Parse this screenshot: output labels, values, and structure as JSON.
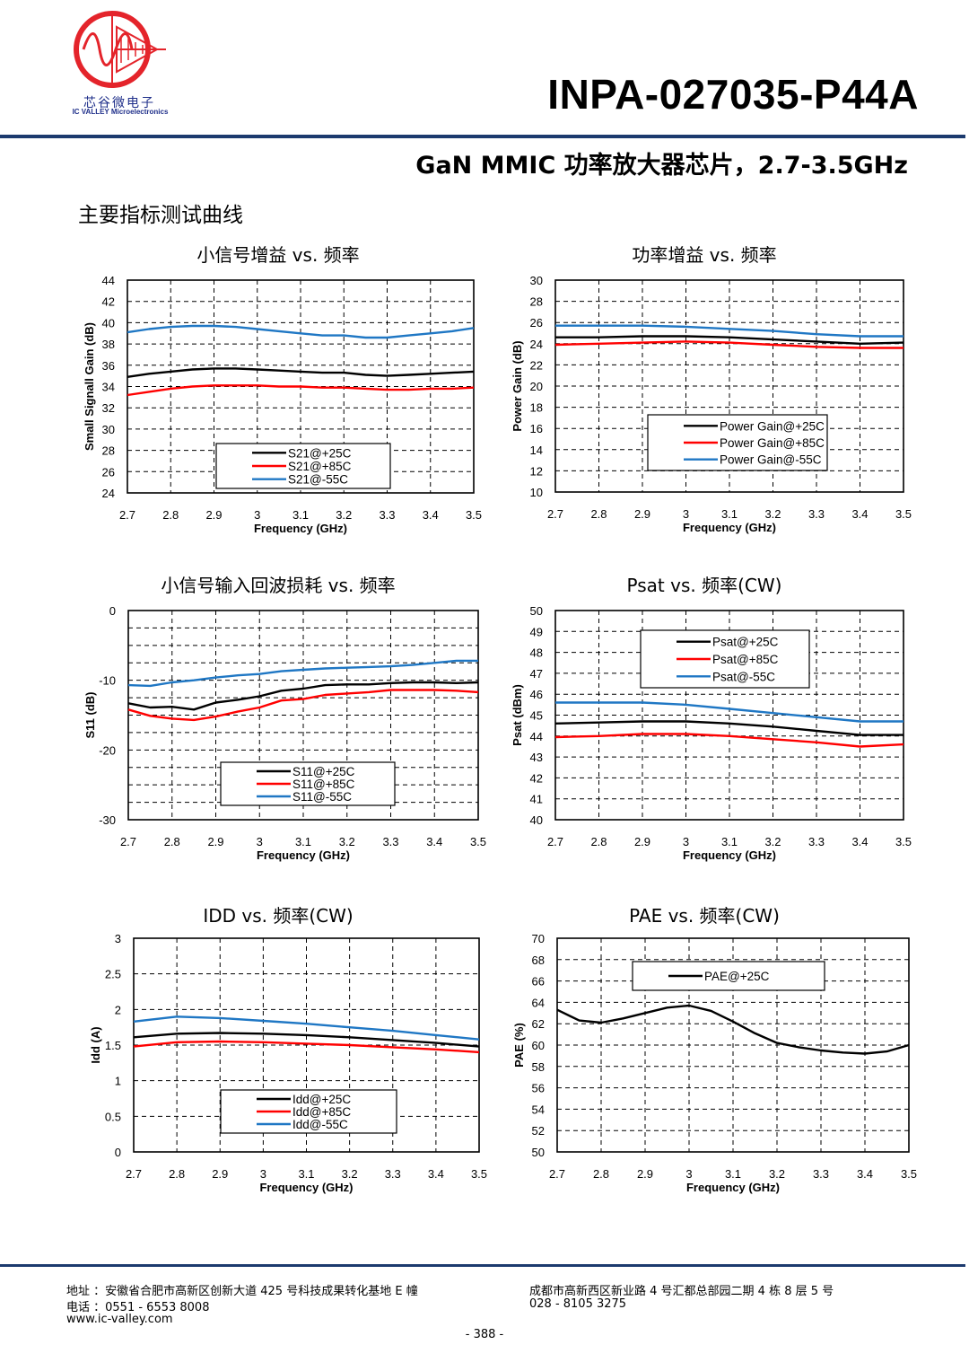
{
  "header": {
    "logo_cn": "芯谷微电子",
    "logo_en": "IC VALLEY Microelectronics",
    "part_number": "INPA-027035-P44A",
    "subtitle": "GaN MMIC 功率放大器芯片，2.7-3.5GHz",
    "section_title": "主要指标测试曲线"
  },
  "colors": {
    "rule": "#1c3a6e",
    "logo_red": "#e4242b",
    "logo_blue": "#1f2f8a",
    "s25": "#000000",
    "s85": "#ff0000",
    "sm55": "#1f77c4"
  },
  "chart_data": [
    {
      "type": "line",
      "title": "小信号增益 vs. 频率",
      "xlabel": "Frequency (GHz)",
      "ylabel": "Small Signall Gain (dB)",
      "xlim": [
        2.7,
        3.5
      ],
      "ylim": [
        24,
        44
      ],
      "x_ticks": [
        "2.7",
        "2.8",
        "2.9",
        "3",
        "3.1",
        "3.2",
        "3.3",
        "3.4",
        "3.5"
      ],
      "y_ticks": [
        "24",
        "26",
        "28",
        "30",
        "32",
        "34",
        "36",
        "38",
        "40",
        "42",
        "44"
      ],
      "legend": "bottom-center",
      "series": [
        {
          "name": "S21@+25C",
          "color": "#000000",
          "x": [
            2.7,
            2.75,
            2.8,
            2.85,
            2.9,
            2.95,
            3.0,
            3.05,
            3.1,
            3.15,
            3.2,
            3.25,
            3.3,
            3.35,
            3.4,
            3.45,
            3.5
          ],
          "y": [
            34.9,
            35.2,
            35.4,
            35.6,
            35.7,
            35.7,
            35.6,
            35.5,
            35.4,
            35.3,
            35.3,
            35.1,
            35.0,
            35.1,
            35.2,
            35.3,
            35.4
          ]
        },
        {
          "name": "S21@+85C",
          "color": "#ff0000",
          "x": [
            2.7,
            2.75,
            2.8,
            2.85,
            2.9,
            2.95,
            3.0,
            3.05,
            3.1,
            3.15,
            3.2,
            3.25,
            3.3,
            3.35,
            3.4,
            3.45,
            3.5
          ],
          "y": [
            33.2,
            33.5,
            33.8,
            34.0,
            34.1,
            34.1,
            34.1,
            34.0,
            34.0,
            33.9,
            33.9,
            33.8,
            33.7,
            33.7,
            33.8,
            33.8,
            33.9
          ]
        },
        {
          "name": "S21@-55C",
          "color": "#1f77c4",
          "x": [
            2.7,
            2.75,
            2.8,
            2.85,
            2.9,
            2.95,
            3.0,
            3.05,
            3.1,
            3.15,
            3.2,
            3.25,
            3.3,
            3.35,
            3.4,
            3.45,
            3.5
          ],
          "y": [
            39.1,
            39.4,
            39.6,
            39.7,
            39.7,
            39.6,
            39.4,
            39.2,
            39.0,
            38.8,
            38.8,
            38.6,
            38.6,
            38.8,
            39.0,
            39.2,
            39.5
          ]
        }
      ]
    },
    {
      "type": "line",
      "title": "功率增益 vs. 频率",
      "xlabel": "Frequency (GHz)",
      "ylabel": "Power Gain (dB)",
      "xlim": [
        2.7,
        3.5
      ],
      "ylim": [
        10,
        30
      ],
      "x_ticks": [
        "2.7",
        "2.8",
        "2.9",
        "3",
        "3.1",
        "3.2",
        "3.3",
        "3.4",
        "3.5"
      ],
      "y_ticks": [
        "10",
        "12",
        "14",
        "16",
        "18",
        "20",
        "22",
        "24",
        "26",
        "28",
        "30"
      ],
      "legend": "bottom-right",
      "series": [
        {
          "name": "Power Gain@+25C",
          "color": "#000000",
          "x": [
            2.7,
            2.8,
            2.9,
            3.0,
            3.1,
            3.2,
            3.3,
            3.4,
            3.5
          ],
          "y": [
            24.6,
            24.6,
            24.7,
            24.7,
            24.6,
            24.4,
            24.2,
            24.0,
            24.1
          ]
        },
        {
          "name": "Power Gain@+85C",
          "color": "#ff0000",
          "x": [
            2.7,
            2.8,
            2.9,
            3.0,
            3.1,
            3.2,
            3.3,
            3.4,
            3.5
          ],
          "y": [
            23.9,
            24.0,
            24.1,
            24.2,
            24.1,
            23.9,
            23.7,
            23.6,
            23.6
          ]
        },
        {
          "name": "Power Gain@-55C",
          "color": "#1f77c4",
          "x": [
            2.7,
            2.8,
            2.9,
            3.0,
            3.1,
            3.2,
            3.3,
            3.4,
            3.5
          ],
          "y": [
            25.7,
            25.7,
            25.7,
            25.6,
            25.4,
            25.2,
            24.9,
            24.7,
            24.7
          ]
        }
      ]
    },
    {
      "type": "line",
      "title": "小信号输入回波损耗 vs. 频率",
      "xlabel": "Frequency (GHz)",
      "ylabel": "S11 (dB)",
      "xlim": [
        2.7,
        3.5
      ],
      "ylim": [
        -30,
        0
      ],
      "x_ticks": [
        "2.7",
        "2.8",
        "2.9",
        "3",
        "3.1",
        "3.2",
        "3.3",
        "3.4",
        "3.5"
      ],
      "y_ticks": [
        "-30",
        "-20",
        "-10",
        "0"
      ],
      "y_tick_values": [
        -30,
        -20,
        -10,
        0
      ],
      "y_grid_values": [
        -27.5,
        -25,
        -22.5,
        -20,
        -17.5,
        -15,
        -12.5,
        -10,
        -7.5,
        -5,
        -2.5
      ],
      "legend": "bottom-center",
      "series": [
        {
          "name": "S11@+25C",
          "color": "#000000",
          "x": [
            2.7,
            2.75,
            2.8,
            2.85,
            2.9,
            2.95,
            3.0,
            3.05,
            3.1,
            3.15,
            3.2,
            3.25,
            3.3,
            3.35,
            3.4,
            3.45,
            3.5
          ],
          "y": [
            -13.3,
            -13.9,
            -13.8,
            -14.2,
            -13.2,
            -12.8,
            -12.3,
            -11.5,
            -11.2,
            -10.7,
            -10.6,
            -10.6,
            -10.4,
            -10.3,
            -10.3,
            -10.4,
            -10.3
          ]
        },
        {
          "name": "S11@+85C",
          "color": "#ff0000",
          "x": [
            2.7,
            2.75,
            2.8,
            2.85,
            2.9,
            2.95,
            3.0,
            3.05,
            3.1,
            3.15,
            3.2,
            3.25,
            3.3,
            3.35,
            3.4,
            3.45,
            3.5
          ],
          "y": [
            -14.2,
            -15.1,
            -15.5,
            -15.7,
            -15.2,
            -14.5,
            -13.9,
            -12.9,
            -12.7,
            -12.1,
            -11.9,
            -11.7,
            -11.4,
            -11.4,
            -11.4,
            -11.5,
            -11.7
          ]
        },
        {
          "name": "S11@-55C",
          "color": "#1f77c4",
          "x": [
            2.7,
            2.75,
            2.8,
            2.85,
            2.9,
            2.95,
            3.0,
            3.05,
            3.1,
            3.15,
            3.2,
            3.25,
            3.3,
            3.35,
            3.4,
            3.45,
            3.5
          ],
          "y": [
            -10.7,
            -10.8,
            -10.3,
            -10.0,
            -9.6,
            -9.3,
            -9.1,
            -8.7,
            -8.5,
            -8.3,
            -8.2,
            -8.1,
            -8.0,
            -7.8,
            -7.5,
            -7.2,
            -7.2
          ]
        }
      ]
    },
    {
      "type": "line",
      "title": "Psat vs.  频率(CW)",
      "xlabel": "Frequency (GHz)",
      "ylabel": "Psat (dBm)",
      "xlim": [
        2.7,
        3.5
      ],
      "ylim": [
        40,
        50
      ],
      "x_ticks": [
        "2.7",
        "2.8",
        "2.9",
        "3",
        "3.1",
        "3.2",
        "3.3",
        "3.4",
        "3.5"
      ],
      "y_ticks": [
        "40",
        "41",
        "42",
        "43",
        "44",
        "45",
        "46",
        "47",
        "48",
        "49",
        "50"
      ],
      "legend": "top-center",
      "series": [
        {
          "name": "Psat@+25C",
          "color": "#000000",
          "x": [
            2.7,
            2.8,
            2.9,
            3.0,
            3.1,
            3.2,
            3.3,
            3.4,
            3.5
          ],
          "y": [
            44.6,
            44.65,
            44.7,
            44.7,
            44.6,
            44.45,
            44.25,
            44.05,
            44.05
          ]
        },
        {
          "name": "Psat@+85C",
          "color": "#ff0000",
          "x": [
            2.7,
            2.8,
            2.9,
            3.0,
            3.1,
            3.2,
            3.3,
            3.4,
            3.5
          ],
          "y": [
            43.95,
            44.0,
            44.1,
            44.1,
            44.0,
            43.85,
            43.7,
            43.5,
            43.6
          ]
        },
        {
          "name": "Psat@-55C",
          "color": "#1f77c4",
          "x": [
            2.7,
            2.8,
            2.9,
            3.0,
            3.1,
            3.2,
            3.3,
            3.4,
            3.5
          ],
          "y": [
            45.6,
            45.6,
            45.6,
            45.5,
            45.3,
            45.1,
            44.9,
            44.7,
            44.7
          ]
        }
      ]
    },
    {
      "type": "line",
      "title": "IDD vs.  频率(CW)",
      "xlabel": "Frequency (GHz)",
      "ylabel": "Idd (A)",
      "xlim": [
        2.7,
        3.5
      ],
      "ylim": [
        0,
        3
      ],
      "x_ticks": [
        "2.7",
        "2.8",
        "2.9",
        "3",
        "3.1",
        "3.2",
        "3.3",
        "3.4",
        "3.5"
      ],
      "y_ticks": [
        "0",
        "0.5",
        "1",
        "1.5",
        "2",
        "2.5",
        "3"
      ],
      "legend": "bottom-center",
      "series": [
        {
          "name": "Idd@+25C",
          "color": "#000000",
          "x": [
            2.7,
            2.8,
            2.9,
            3.0,
            3.1,
            3.2,
            3.3,
            3.4,
            3.5
          ],
          "y": [
            1.61,
            1.66,
            1.67,
            1.66,
            1.64,
            1.61,
            1.57,
            1.53,
            1.48
          ]
        },
        {
          "name": "Idd@+85C",
          "color": "#ff0000",
          "x": [
            2.7,
            2.8,
            2.9,
            3.0,
            3.1,
            3.2,
            3.3,
            3.4,
            3.5
          ],
          "y": [
            1.48,
            1.54,
            1.55,
            1.54,
            1.52,
            1.5,
            1.47,
            1.44,
            1.4
          ]
        },
        {
          "name": "Idd@-55C",
          "color": "#1f77c4",
          "x": [
            2.7,
            2.8,
            2.9,
            3.0,
            3.1,
            3.2,
            3.3,
            3.4,
            3.5
          ],
          "y": [
            1.83,
            1.9,
            1.88,
            1.84,
            1.8,
            1.75,
            1.7,
            1.64,
            1.58
          ]
        }
      ]
    },
    {
      "type": "line",
      "title": "PAE vs.  频率(CW)",
      "xlabel": "Frequency (GHz)",
      "ylabel": "PAE (%)",
      "xlim": [
        2.7,
        3.5
      ],
      "ylim": [
        50,
        70
      ],
      "x_ticks": [
        "2.7",
        "2.8",
        "2.9",
        "3",
        "3.1",
        "3.2",
        "3.3",
        "3.4",
        "3.5"
      ],
      "y_ticks": [
        "50",
        "52",
        "54",
        "56",
        "58",
        "60",
        "62",
        "64",
        "66",
        "68",
        "70"
      ],
      "legend": "top-center",
      "series": [
        {
          "name": "PAE@+25C",
          "color": "#000000",
          "x": [
            2.7,
            2.75,
            2.8,
            2.85,
            2.9,
            2.95,
            3.0,
            3.05,
            3.1,
            3.15,
            3.2,
            3.25,
            3.3,
            3.35,
            3.4,
            3.45,
            3.5
          ],
          "y": [
            63.3,
            62.3,
            62.1,
            62.5,
            63.0,
            63.5,
            63.7,
            63.2,
            62.2,
            61.1,
            60.2,
            59.8,
            59.5,
            59.3,
            59.2,
            59.4,
            60.0
          ]
        }
      ]
    }
  ],
  "footer": {
    "addr_left": "地址 ：安徽省合肥市高新区创新大道 425 号科技成果转化基地 E 幢",
    "tel_left": "电话 ：0551 - 6553 8008",
    "web": "www.ic-valley.com",
    "addr_right": "成都市高新西区新业路 4 号汇都总部园二期 4 栋 8 层 5 号",
    "tel_right": "028 - 8105 3275",
    "page": "- 388 -"
  }
}
